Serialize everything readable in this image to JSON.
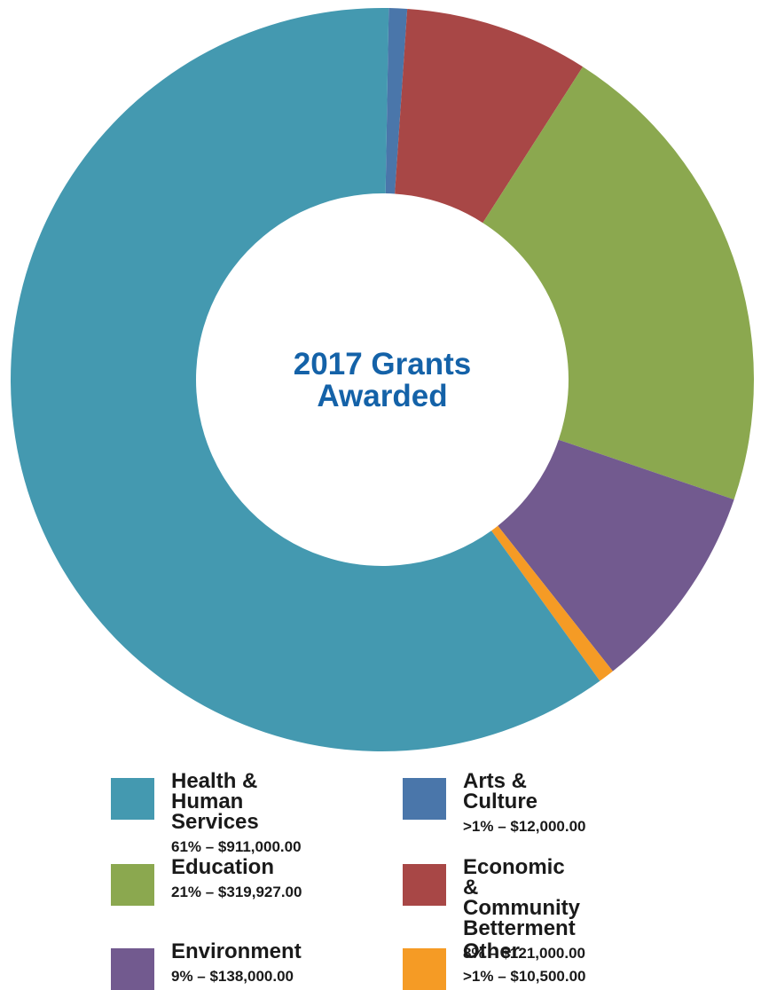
{
  "chart_data": {
    "type": "pie",
    "donut": true,
    "center_label": "2017 Grants\nAwarded",
    "center_label_lines": [
      "2017 Grants",
      "Awarded"
    ],
    "center_label_color": "#1462A8",
    "start_angle_deg": 1,
    "slice_order": [
      "Arts & Culture",
      "Economic & Community Betterment",
      "Education",
      "Environment",
      "Other",
      "Health & Human Services"
    ],
    "slices": [
      {
        "name": "Health & Human Services",
        "name_lines": [
          "Health &",
          "Human Services"
        ],
        "percent_label": "61%",
        "amount_label": "$911,000.00",
        "value": 911000,
        "color": "#4499B0"
      },
      {
        "name": "Arts & Culture",
        "name_lines": [
          "Arts & Culture"
        ],
        "percent_label": ">1%",
        "amount_label": "$12,000.00",
        "value": 12000,
        "color": "#4A76AA"
      },
      {
        "name": "Education",
        "name_lines": [
          "Education"
        ],
        "percent_label": "21%",
        "amount_label": "$319,927.00",
        "value": 319927,
        "color": "#8BA84F"
      },
      {
        "name": "Economic & Community Betterment",
        "name_lines": [
          "Economic & Community",
          "Betterment"
        ],
        "percent_label": "8%",
        "amount_label": "$121,000.00",
        "value": 121000,
        "color": "#A84746"
      },
      {
        "name": "Environment",
        "name_lines": [
          "Environment"
        ],
        "percent_label": "9%",
        "amount_label": "$138,000.00",
        "value": 138000,
        "color": "#725A8F"
      },
      {
        "name": "Other",
        "name_lines": [
          "Other"
        ],
        "percent_label": ">1%",
        "amount_label": "$10,500.00",
        "value": 10500,
        "color": "#F59B25"
      }
    ]
  },
  "legend": {
    "items": [
      {
        "name": "Health &\nHuman Services",
        "value_text": "61% – $911,000.00",
        "color": "#4499B0"
      },
      {
        "name": "Arts & Culture",
        "value_text": ">1% – $12,000.00",
        "color": "#4A76AA"
      },
      {
        "name": "Education",
        "value_text": "21% – $319,927.00",
        "color": "#8BA84F"
      },
      {
        "name": "Economic & Community\nBetterment",
        "value_text": "8% – $121,000.00",
        "color": "#A84746"
      },
      {
        "name": "Environment",
        "value_text": "9% – $138,000.00",
        "color": "#725A8F"
      },
      {
        "name": "Other",
        "value_text": ">1% – $10,500.00",
        "color": "#F59B25"
      }
    ]
  }
}
